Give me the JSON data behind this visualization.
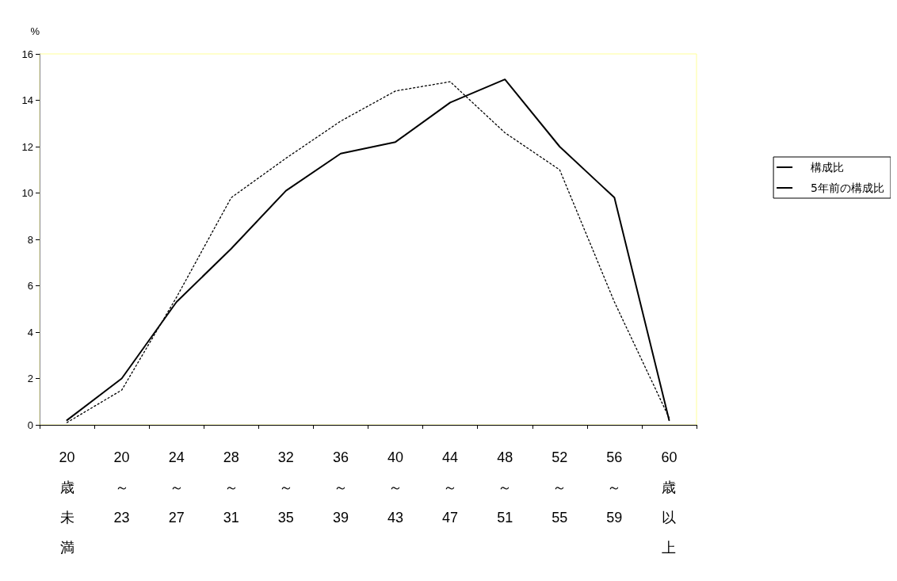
{
  "chart_data": {
    "type": "line",
    "ylabel": "%",
    "categories": [
      "20歳未満",
      "20～23",
      "24～27",
      "28～31",
      "32～35",
      "36～39",
      "40～43",
      "44～47",
      "48～51",
      "52～55",
      "56～59",
      "60歳以上"
    ],
    "ylim": [
      0,
      16
    ],
    "yticks": [
      0,
      2,
      4,
      6,
      8,
      10,
      12,
      14,
      16
    ],
    "grid": false,
    "legend": "right",
    "marker": "none",
    "series": [
      {
        "name": "構成比",
        "color": "#000000",
        "line_style": "solid",
        "values": [
          0.2,
          2.0,
          5.3,
          7.6,
          10.1,
          11.7,
          12.2,
          13.9,
          14.9,
          12.0,
          9.8,
          0.2
        ]
      },
      {
        "name": "5年前の構成比",
        "color": "#000000",
        "line_style": "dotted",
        "values": [
          0.1,
          1.5,
          5.5,
          9.8,
          11.5,
          13.1,
          14.4,
          14.8,
          12.6,
          11.0,
          5.3,
          0.3
        ]
      }
    ]
  }
}
